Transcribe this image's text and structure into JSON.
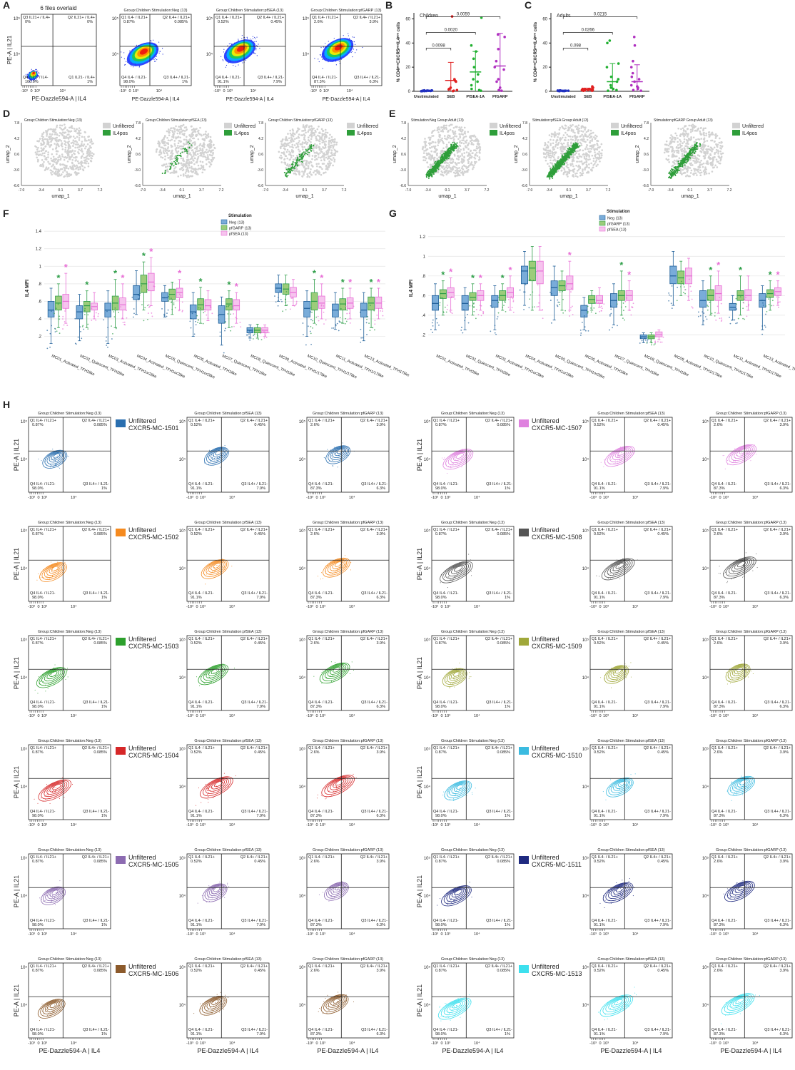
{
  "panel_labels": [
    "A",
    "B",
    "C",
    "D",
    "E",
    "F",
    "G",
    "H"
  ],
  "flow": {
    "x_label": "PE-Dazzle594-A | IL4",
    "y_label": "PE-A | IL21",
    "x_ticks": [
      "-10³",
      "0",
      "10³",
      "10⁴"
    ],
    "y_ticks": [
      "10⁵",
      "10⁴"
    ],
    "quadrants": [
      "Q1 IL4- / IL21+",
      "Q2 IL4+ / IL21+",
      "Q3 IL4+ / IL21-",
      "Q4 IL4- / IL21-"
    ],
    "stimulations": [
      {
        "header": "Group:Children  Stimulation:Neg (13)",
        "pct": [
          "0.87%",
          "0.085%",
          "1%",
          "98.0%"
        ]
      },
      {
        "header": "Group:Children  Stimulation:pfSEA (13)",
        "pct": [
          "0.52%",
          "0.45%",
          "7.9%",
          "91.1%"
        ]
      },
      {
        "header": "Group:Children  Stimulation:pfGARP (13)",
        "pct": [
          "2.6%",
          "3.9%",
          "6.3%",
          "87.3%"
        ]
      }
    ],
    "legend_label": "Unfiltered"
  },
  "panel_a": {
    "title": "6 files overlaid",
    "quadrants": [
      "Q3 IL21+ / IL4+",
      "Q2 IL21+ / IL4+",
      "Q1 IL21- / IL4+",
      "Q4 IL21- / IL4-"
    ],
    "pct": [
      "0%",
      "0%",
      "1%",
      "100.0%"
    ]
  },
  "umap": {
    "x_label": "umap_1",
    "y_label": "umap_2",
    "x_ticks": [
      "-7.0",
      "-3.4",
      "0.1",
      "3.7",
      "7.2"
    ],
    "y_ticks": [
      "7.8",
      "4.2",
      "0.6",
      "-3.0",
      "-6.6"
    ],
    "legend": [
      "Unfiltered",
      "IL4pos"
    ],
    "colors": [
      "#d2d2d2",
      "#2e9e3a"
    ],
    "headers": [
      "Group:Children  Stimulation:Neg (13)",
      "Group:Children  Stimulation:pfSEA (13)",
      "Group:Children  Stimulation:pfGARP (13)",
      "Stimulation:Neg  Group:Adult (13)",
      "Stimulation:pfSEA  Group:Adult (13)",
      "Stimulation:pfGARP  Group:Adult (13)"
    ]
  },
  "clusters": [
    {
      "name": "CXCR5-MC-1501",
      "color": "#2a6fb0"
    },
    {
      "name": "CXCR5-MC-1502",
      "color": "#f58a1f"
    },
    {
      "name": "CXCR5-MC-1503",
      "color": "#2ca02c"
    },
    {
      "name": "CXCR5-MC-1504",
      "color": "#d62728"
    },
    {
      "name": "CXCR5-MC-1505",
      "color": "#8c6bb1"
    },
    {
      "name": "CXCR5-MC-1506",
      "color": "#8c5a2b"
    },
    {
      "name": "CXCR5-MC-1507",
      "color": "#df82df"
    },
    {
      "name": "CXCR5-MC-1508",
      "color": "#555555"
    },
    {
      "name": "CXCR5-MC-1509",
      "color": "#a0a83a"
    },
    {
      "name": "CXCR5-MC-1510",
      "color": "#3bbbe0"
    },
    {
      "name": "CXCR5-MC-1511",
      "color": "#1f2a80"
    },
    {
      "name": "CXCR5-MC-1513",
      "color": "#3de0ee"
    }
  ],
  "chart_data": [
    {
      "type": "dot",
      "title": "Children",
      "ylabel": "% CD4ᵖᵒˢCXCR5ᵖᵒˢIL4ᵖᵒˢ cells",
      "categories": [
        "Unstimulated",
        "SEB",
        "PfSEA-1A",
        "PfGARP"
      ],
      "colors": [
        "#2030c0",
        "#e02020",
        "#20b030",
        "#b030c0"
      ],
      "points": [
        [
          0.3,
          0.5,
          0.2,
          0.8,
          0.4,
          0.6,
          0.1,
          0.5,
          0.3,
          0.7,
          0.2,
          0.4,
          0.6
        ],
        [
          0.2,
          0.5,
          1,
          1.5,
          2,
          3,
          8,
          9,
          10,
          62
        ],
        [
          0.5,
          1,
          2,
          5,
          8,
          10,
          14,
          20,
          27,
          33,
          38,
          61
        ],
        [
          0.5,
          1,
          3,
          8,
          10,
          18,
          20,
          25,
          35,
          45,
          47
        ]
      ],
      "means": [
        0.4,
        9,
        16,
        21
      ],
      "sd": [
        0.3,
        15,
        17,
        27
      ],
      "comparisons": [
        "0.0098",
        "0.0020",
        "0.0059"
      ],
      "ylim": [
        0,
        65
      ],
      "yticks": [
        0,
        20,
        40,
        60
      ]
    },
    {
      "type": "dot",
      "title": "Adults",
      "ylabel": "% CD4ᵖᵒˢCXCR5ᵖᵒˢIL4ᵖᵒˢ cells",
      "categories": [
        "Unstimulated",
        "SEB",
        "PfSEA-1A",
        "PfGARP"
      ],
      "colors": [
        "#2030c0",
        "#e02020",
        "#20b030",
        "#b030c0"
      ],
      "points": [
        [
          0.2,
          0.4,
          0.3,
          0.6,
          0.5,
          0.2,
          0.7,
          0.4,
          0.3,
          0.5,
          0.6,
          0.2,
          0.4
        ],
        [
          0.5,
          1,
          2,
          3,
          1,
          0.8,
          2,
          1.5,
          0.5,
          1,
          2,
          3,
          4
        ],
        [
          0.5,
          1,
          2,
          3,
          5,
          8,
          10,
          12,
          20,
          23,
          40,
          42
        ],
        [
          0.5,
          1,
          2,
          3,
          4,
          5,
          8,
          10,
          12,
          15,
          20,
          25,
          38,
          45
        ]
      ],
      "means": [
        0.4,
        1.6,
        8,
        8
      ],
      "sd": [
        0.2,
        1,
        15,
        14
      ],
      "comparisons": [
        "0.098",
        "0.0266",
        "0.0215"
      ],
      "ylim": [
        0,
        65
      ],
      "yticks": [
        0,
        20,
        40,
        60
      ]
    },
    {
      "type": "box",
      "ylabel": "IL4 MFI",
      "legend_title": "Stimulation",
      "star": "*",
      "grid": true,
      "categories": [
        "MC01_Activated_TFH2like",
        "MC02_Quiescent_TFH2like",
        "MC03_Activated_TFH1or2like",
        "MC04_Activated_TFH1or2like",
        "MC05_Quiescent_TFH1or2like",
        "MC06_Activated_TFH1like",
        "MC07_Quiescent_TFH1like",
        "MC08_Quiescent_TFH1like",
        "MC09_Activated_TFH1/17like",
        "MC10_Quiescent_TFH1/17like",
        "MC11_Activated_TFH1/17like",
        "MC13_Activated_TFH17like"
      ],
      "ylim": [
        0.05,
        1.45
      ],
      "yticks": [
        {
          "value": 0.2,
          "label": ".2"
        },
        {
          "value": 0.4,
          "label": ".4"
        },
        {
          "value": 0.6,
          "label": ".6"
        },
        {
          "value": 0.8,
          "label": ".8"
        },
        1,
        1.2,
        1.4
      ],
      "series": [
        {
          "name": "Neg (13)",
          "color": "#79acd9",
          "edge": "#1f5f99",
          "low": [
            0.12,
            0.15,
            0.12,
            0.45,
            0.42,
            0.2,
            0.1,
            0.18,
            0.6,
            0.2,
            0.28,
            0.15
          ],
          "q1": [
            0.42,
            0.4,
            0.42,
            0.62,
            0.6,
            0.4,
            0.35,
            0.24,
            0.7,
            0.42,
            0.42,
            0.42
          ],
          "median": [
            0.5,
            0.48,
            0.5,
            0.68,
            0.64,
            0.48,
            0.45,
            0.27,
            0.75,
            0.52,
            0.5,
            0.5
          ],
          "q3": [
            0.6,
            0.55,
            0.58,
            0.78,
            0.7,
            0.56,
            0.55,
            0.3,
            0.8,
            0.6,
            0.57,
            0.58
          ],
          "high": [
            0.75,
            0.68,
            0.72,
            0.95,
            0.78,
            0.7,
            0.65,
            0.33,
            0.9,
            0.72,
            0.7,
            0.7
          ],
          "significant": [
            false,
            false,
            false,
            false,
            false,
            false,
            false,
            false,
            false,
            false,
            false,
            false
          ]
        },
        {
          "name": "pfGARP (13)",
          "color": "#9ccc7a",
          "edge": "#2e9e48",
          "low": [
            0.3,
            0.3,
            0.3,
            0.5,
            0.45,
            0.35,
            0.3,
            0.18,
            0.55,
            0.35,
            0.35,
            0.3
          ],
          "q1": [
            0.5,
            0.48,
            0.5,
            0.7,
            0.62,
            0.5,
            0.5,
            0.24,
            0.68,
            0.5,
            0.5,
            0.5
          ],
          "median": [
            0.58,
            0.55,
            0.58,
            0.8,
            0.68,
            0.56,
            0.57,
            0.27,
            0.74,
            0.6,
            0.57,
            0.58
          ],
          "q3": [
            0.66,
            0.6,
            0.66,
            0.9,
            0.74,
            0.63,
            0.63,
            0.3,
            0.8,
            0.7,
            0.63,
            0.65
          ],
          "high": [
            0.8,
            0.72,
            0.85,
            1.05,
            0.82,
            0.76,
            0.72,
            0.34,
            0.9,
            0.85,
            0.75,
            0.75
          ],
          "significant": [
            true,
            true,
            true,
            true,
            false,
            true,
            true,
            false,
            false,
            true,
            true,
            true
          ]
        },
        {
          "name": "pfSEA (13)",
          "color": "#f6c4ee",
          "edge": "#e86fd6",
          "low": [
            0.35,
            0.4,
            0.4,
            0.55,
            0.5,
            0.38,
            0.35,
            0.2,
            0.55,
            0.4,
            0.4,
            0.4
          ],
          "q1": [
            0.52,
            0.5,
            0.5,
            0.72,
            0.64,
            0.5,
            0.5,
            0.24,
            0.65,
            0.52,
            0.52,
            0.52
          ],
          "median": [
            0.6,
            0.54,
            0.56,
            0.82,
            0.7,
            0.55,
            0.55,
            0.27,
            0.7,
            0.58,
            0.58,
            0.58
          ],
          "q3": [
            0.68,
            0.58,
            0.64,
            0.92,
            0.75,
            0.62,
            0.62,
            0.3,
            0.76,
            0.66,
            0.64,
            0.65
          ],
          "high": [
            0.92,
            0.7,
            0.8,
            1.1,
            0.85,
            0.72,
            0.7,
            0.33,
            0.85,
            0.8,
            0.75,
            0.75
          ],
          "significant": [
            true,
            false,
            true,
            true,
            true,
            false,
            true,
            false,
            false,
            true,
            true,
            true
          ]
        }
      ]
    },
    {
      "type": "box",
      "ylabel": "IL4 MFI",
      "legend_title": "Stimulation",
      "star": "*",
      "grid": true,
      "categories": [
        "MC01_Activated_TFH2like",
        "MC02_Quiescent_TFH2like",
        "MC03_Activated_TFH1or2like",
        "MC04_Activated_TFH1or2like",
        "MC05_Quiescent_TFH1or2like",
        "MC06_Activated_TFH1like",
        "MC07_Quiescent_TFH1like",
        "MC08_Quiescent_TFH1like",
        "MC09_Activated_TFH1/17like",
        "MC10_Quiescent_TFH1/17like",
        "MC11_Activated_TFH1/17like",
        "MC13_Activated_TFH17like"
      ],
      "ylim": [
        0.05,
        1.3
      ],
      "yticks": [
        {
          "value": 0.2,
          "label": ".2"
        },
        {
          "value": 0.4,
          "label": ".4"
        },
        {
          "value": 0.6,
          "label": ".6"
        },
        {
          "value": 0.8,
          "label": ".8"
        },
        1,
        1.2
      ],
      "series": [
        {
          "name": "Neg (13)",
          "color": "#79acd9",
          "edge": "#1f5f99",
          "low": [
            0.25,
            0.25,
            0.25,
            0.5,
            0.35,
            0.25,
            0.3,
            0.12,
            0.5,
            0.3,
            0.35,
            0.25
          ],
          "q1": [
            0.45,
            0.45,
            0.48,
            0.72,
            0.6,
            0.38,
            0.48,
            0.16,
            0.72,
            0.48,
            0.45,
            0.48
          ],
          "median": [
            0.52,
            0.52,
            0.55,
            0.85,
            0.68,
            0.45,
            0.55,
            0.18,
            0.8,
            0.55,
            0.48,
            0.55
          ],
          "q3": [
            0.6,
            0.6,
            0.6,
            0.9,
            0.75,
            0.5,
            0.62,
            0.2,
            0.9,
            0.65,
            0.52,
            0.62
          ],
          "high": [
            0.72,
            0.68,
            0.7,
            1.05,
            0.9,
            0.58,
            0.72,
            0.22,
            1.05,
            0.75,
            0.6,
            0.7
          ],
          "significant": [
            false,
            false,
            false,
            false,
            false,
            false,
            false,
            false,
            false,
            false,
            false,
            false
          ]
        },
        {
          "name": "pfGARP (13)",
          "color": "#9ccc7a",
          "edge": "#2e9e48",
          "low": [
            0.4,
            0.4,
            0.45,
            0.45,
            0.45,
            0.45,
            0.4,
            0.12,
            0.6,
            0.4,
            0.4,
            0.45
          ],
          "q1": [
            0.57,
            0.55,
            0.55,
            0.75,
            0.65,
            0.52,
            0.55,
            0.16,
            0.72,
            0.55,
            0.55,
            0.58
          ],
          "median": [
            0.62,
            0.58,
            0.6,
            0.88,
            0.7,
            0.56,
            0.6,
            0.18,
            0.78,
            0.6,
            0.6,
            0.62
          ],
          "q3": [
            0.66,
            0.63,
            0.65,
            0.95,
            0.75,
            0.6,
            0.65,
            0.2,
            0.85,
            0.66,
            0.65,
            0.66
          ],
          "high": [
            0.75,
            0.72,
            0.72,
            1.1,
            0.85,
            0.65,
            0.85,
            0.22,
            0.95,
            0.8,
            0.8,
            0.75
          ],
          "significant": [
            true,
            true,
            true,
            false,
            false,
            false,
            true,
            false,
            false,
            true,
            true,
            true
          ]
        },
        {
          "name": "pfSEA (13)",
          "color": "#f6c4ee",
          "edge": "#e86fd6",
          "low": [
            0.45,
            0.45,
            0.45,
            0.45,
            0.45,
            0.48,
            0.45,
            0.15,
            0.55,
            0.42,
            0.45,
            0.5
          ],
          "q1": [
            0.58,
            0.55,
            0.58,
            0.72,
            0.66,
            0.52,
            0.55,
            0.18,
            0.72,
            0.55,
            0.55,
            0.6
          ],
          "median": [
            0.63,
            0.6,
            0.63,
            0.85,
            0.72,
            0.55,
            0.6,
            0.2,
            0.8,
            0.62,
            0.6,
            0.64
          ],
          "q3": [
            0.68,
            0.65,
            0.68,
            0.95,
            0.8,
            0.6,
            0.65,
            0.23,
            0.88,
            0.7,
            0.66,
            0.68
          ],
          "high": [
            0.78,
            0.72,
            0.8,
            1.1,
            0.95,
            0.68,
            0.75,
            0.25,
            0.98,
            0.85,
            0.8,
            0.75
          ],
          "significant": [
            true,
            true,
            true,
            false,
            true,
            false,
            true,
            false,
            false,
            true,
            false,
            true
          ]
        }
      ]
    }
  ]
}
